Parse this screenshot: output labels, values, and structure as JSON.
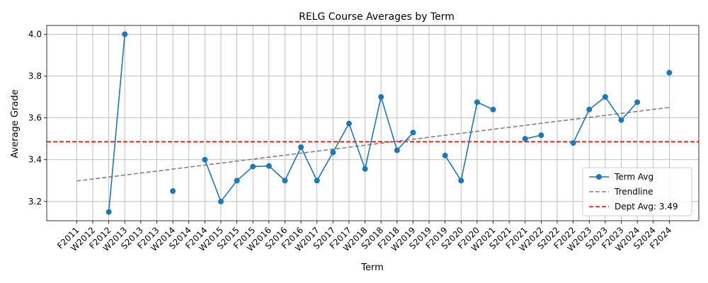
{
  "chart_data": {
    "type": "line",
    "title": "RELG Course Averages by Term",
    "xlabel": "Term",
    "ylabel": "Average Grade",
    "categories": [
      "F2011",
      "W2012",
      "F2012",
      "W2013",
      "S2013",
      "F2013",
      "W2014",
      "S2014",
      "F2014",
      "W2015",
      "S2015",
      "F2015",
      "W2016",
      "S2016",
      "F2016",
      "W2017",
      "S2017",
      "F2017",
      "W2018",
      "S2018",
      "F2018",
      "W2019",
      "S2019",
      "F2019",
      "S2020",
      "F2020",
      "W2021",
      "S2021",
      "F2021",
      "W2022",
      "S2022",
      "F2022",
      "W2023",
      "S2023",
      "F2023",
      "W2024",
      "S2024",
      "F2024"
    ],
    "series": [
      {
        "name": "Term Avg",
        "color": "#1f77b4",
        "values": [
          null,
          null,
          3.15,
          4.0,
          null,
          null,
          3.25,
          null,
          3.4,
          3.2,
          3.3,
          3.367,
          3.37,
          3.3,
          3.46,
          3.3,
          3.435,
          3.573,
          3.356,
          3.7,
          3.445,
          3.53,
          null,
          3.42,
          3.3,
          3.675,
          3.64,
          null,
          3.5,
          3.517,
          null,
          3.48,
          3.64,
          3.7,
          3.59,
          3.675,
          null,
          3.816
        ]
      }
    ],
    "trendline": {
      "name": "Trendline",
      "color": "#808080",
      "start": 3.298,
      "end": 3.65
    },
    "reference_line": {
      "name": "Dept Avg: 3.49",
      "value": 3.486,
      "color": "#ff0000"
    },
    "ylim": [
      3.108,
      4.042
    ],
    "yticks": [
      "3.2",
      "3.4",
      "3.6",
      "3.8",
      "4.0"
    ],
    "grid": true,
    "legend_position": "lower-right"
  }
}
